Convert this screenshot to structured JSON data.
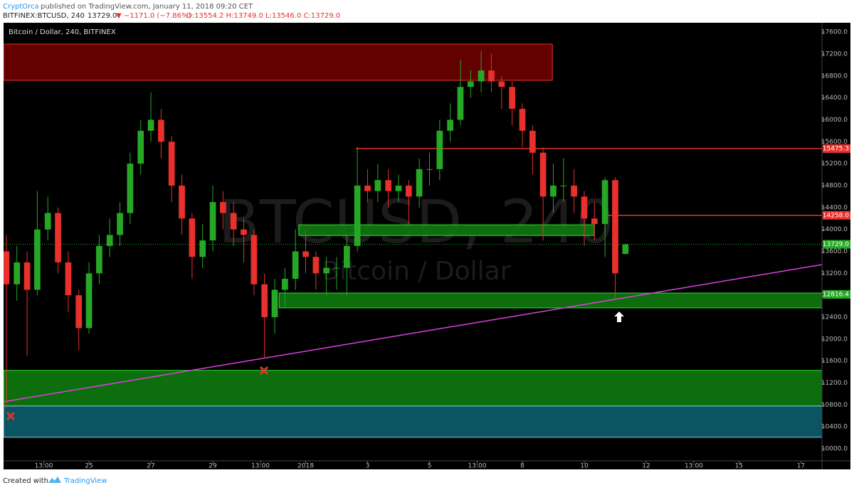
{
  "header": {
    "author": "CryptOrca",
    "published": "published on TradingView.com, January 11, 2018 09:20 CET",
    "symbol": "BITFINEX:BTCUSD, 240",
    "last": "13729.0",
    "change": "▼ −1171.0 (−7.86%)",
    "ohlc": "O:13554.2 H:13749.0 L:13546.0 C:13729.0"
  },
  "footer": {
    "created": "Created with",
    "brand": "TradingView"
  },
  "chart_data": {
    "type": "candlestick",
    "title": "Bitcoin / Dollar, 240, BITFINEX",
    "watermark": "BTCUSD, 240",
    "watermark_sub": "Bitcoin / Dollar",
    "up_color": "#26a826",
    "down_color": "#e8302c",
    "x": [
      -0.67,
      -0.33,
      0,
      0.33,
      0.67,
      1,
      1.33,
      1.67,
      2,
      2.33,
      2.67,
      3,
      3.33,
      3.67,
      4,
      4.33,
      4.67,
      5,
      5.33,
      5.67,
      6,
      6.33,
      6.67,
      7,
      7.33,
      7.67,
      8,
      8.33,
      8.67,
      9,
      9.33,
      9.67,
      10,
      10.33,
      10.67,
      11,
      11.33,
      11.67,
      12,
      12.33,
      12.67,
      13,
      13.33,
      13.67,
      14,
      14.33,
      14.67,
      15,
      15.33,
      15.67,
      16,
      16.33,
      16.67,
      17,
      17.33,
      17.67,
      18,
      18.33,
      18.67,
      19,
      19.33
    ],
    "open": [
      13600,
      13000,
      13400,
      12900,
      14000,
      14300,
      13400,
      12800,
      12200,
      13200,
      13700,
      13900,
      14300,
      15200,
      15800,
      16000,
      15600,
      14800,
      14200,
      13500,
      13800,
      14500,
      14300,
      14000,
      13900,
      13000,
      12400,
      12900,
      13100,
      13600,
      13500,
      13200,
      13300,
      13300,
      13700,
      14800,
      14700,
      14900,
      14700,
      14800,
      14600,
      15100,
      15100,
      15800,
      16000,
      16600,
      16700,
      16900,
      16700,
      16600,
      16200,
      15800,
      15400,
      14600,
      14800,
      14800,
      14600,
      14200,
      14100,
      14900,
      13554.2
    ],
    "high": [
      13900,
      13700,
      13600,
      14700,
      14600,
      14400,
      13600,
      12900,
      13400,
      13900,
      14200,
      14500,
      15400,
      16000,
      16500,
      16200,
      15700,
      15000,
      14300,
      14100,
      14800,
      14700,
      14500,
      14200,
      14000,
      13200,
      13100,
      13300,
      14000,
      14000,
      13600,
      13500,
      13500,
      13900,
      15500,
      15100,
      15200,
      15100,
      15000,
      14900,
      15300,
      15400,
      16000,
      16300,
      17100,
      16900,
      17250,
      17200,
      16800,
      16700,
      16300,
      15900,
      15500,
      15200,
      15300,
      15100,
      14700,
      14500,
      14950,
      14950,
      13749
    ],
    "low": [
      10750,
      12700,
      11700,
      12800,
      13800,
      13200,
      12500,
      11800,
      12100,
      13000,
      13500,
      13700,
      14100,
      15000,
      15600,
      15300,
      14500,
      13900,
      13100,
      13300,
      13600,
      14000,
      13700,
      13400,
      12800,
      11650,
      12100,
      12600,
      12900,
      13200,
      12900,
      12800,
      12900,
      12800,
      13600,
      14500,
      14500,
      14400,
      14500,
      14100,
      14400,
      14800,
      14900,
      15600,
      15900,
      16400,
      16500,
      16500,
      16200,
      15900,
      15500,
      15000,
      13800,
      14300,
      14500,
      14300,
      13700,
      13800,
      13500,
      12700,
      13546
    ],
    "close": [
      13000,
      13400,
      12900,
      14000,
      14300,
      13400,
      12800,
      12200,
      13200,
      13700,
      13900,
      14300,
      15200,
      15800,
      16000,
      15600,
      14800,
      14200,
      13500,
      13800,
      14500,
      14300,
      14000,
      13900,
      13000,
      12400,
      12900,
      13100,
      13600,
      13500,
      13200,
      13300,
      13300,
      13700,
      14800,
      14700,
      14900,
      14700,
      14800,
      14600,
      15100,
      15100,
      15800,
      16000,
      16600,
      16700,
      16900,
      16700,
      16600,
      16200,
      15800,
      15400,
      14600,
      14800,
      14800,
      14600,
      14200,
      14100,
      14900,
      13200,
      13729
    ],
    "xlim": [
      -0.76,
      25.68
    ],
    "xticks": [
      {
        "value": 0.54,
        "label": "13:00"
      },
      {
        "value": 2,
        "label": "25"
      },
      {
        "value": 4,
        "label": "27"
      },
      {
        "value": 6,
        "label": "29"
      },
      {
        "value": 7.54,
        "label": "13:00"
      },
      {
        "value": 9,
        "label": "2018"
      },
      {
        "value": 11,
        "label": "3"
      },
      {
        "value": 13,
        "label": "5"
      },
      {
        "value": 14.54,
        "label": "13:00"
      },
      {
        "value": 16,
        "label": "8"
      },
      {
        "value": 18,
        "label": "10"
      },
      {
        "value": 20,
        "label": "12"
      },
      {
        "value": 21.54,
        "label": "13:00"
      },
      {
        "value": 23,
        "label": "15"
      },
      {
        "value": 25,
        "label": "17"
      }
    ],
    "ylim": [
      9780,
      17770
    ],
    "yticks": [
      {
        "value": 10000,
        "label": "10000.0"
      },
      {
        "value": 10400,
        "label": "10400.0"
      },
      {
        "value": 10800,
        "label": "10800.0"
      },
      {
        "value": 11200,
        "label": "11200.0"
      },
      {
        "value": 11600,
        "label": "11600.0"
      },
      {
        "value": 12000,
        "label": "12000.0"
      },
      {
        "value": 12400,
        "label": "12400.0"
      },
      {
        "value": 12800,
        "label": "12800.0"
      },
      {
        "value": 13200,
        "label": "13200.0"
      },
      {
        "value": 13600,
        "label": "13600.0"
      },
      {
        "value": 14000,
        "label": "14000.0"
      },
      {
        "value": 14400,
        "label": "14400.0"
      },
      {
        "value": 14800,
        "label": "14800.0"
      },
      {
        "value": 15200,
        "label": "15200.0"
      },
      {
        "value": 15600,
        "label": "15600.0"
      },
      {
        "value": 16000,
        "label": "16000.0"
      },
      {
        "value": 16400,
        "label": "16400.0"
      },
      {
        "value": 16800,
        "label": "16800.0"
      },
      {
        "value": 17200,
        "label": "17200.0"
      },
      {
        "value": 17600,
        "label": "17600.0"
      }
    ],
    "zones": [
      {
        "x": [
          -0.76,
          16.97
        ],
        "y": [
          16720,
          17380
        ],
        "color": "#6e0000",
        "border": "#e8302c"
      },
      {
        "x": [
          8.78,
          18.32
        ],
        "y": [
          13890,
          14085
        ],
        "color": "#0e7a0e",
        "border": "#2ee02e"
      },
      {
        "x": [
          8.14,
          25.68
        ],
        "y": [
          12570,
          12840
        ],
        "color": "#0e7a0e",
        "border": "#2ee02e"
      },
      {
        "x": [
          -0.76,
          25.68
        ],
        "y": [
          10780,
          11430
        ],
        "color": "#0e7a0e",
        "border": "#2ee02e"
      },
      {
        "x": [
          -0.76,
          25.68
        ],
        "y": [
          10210,
          10780
        ],
        "color": "#0b5e6b",
        "border": "#7fd0d8"
      }
    ],
    "trendline": {
      "x": [
        -0.76,
        25.68
      ],
      "y": [
        10856,
        13359
      ],
      "color": "#e040e0"
    },
    "price_lines": [
      {
        "value": 15475.3,
        "color": "#e8302c",
        "start": 10.62
      },
      {
        "value": 14258,
        "label": "14258.0",
        "color": "#e8302c",
        "start": 18.67
      },
      {
        "value": 13729,
        "label": "13729.0",
        "color": "#26a826",
        "start": -0.76,
        "dotted": true
      },
      {
        "value": 12816.4,
        "color": "#26a826"
      }
    ]
  }
}
